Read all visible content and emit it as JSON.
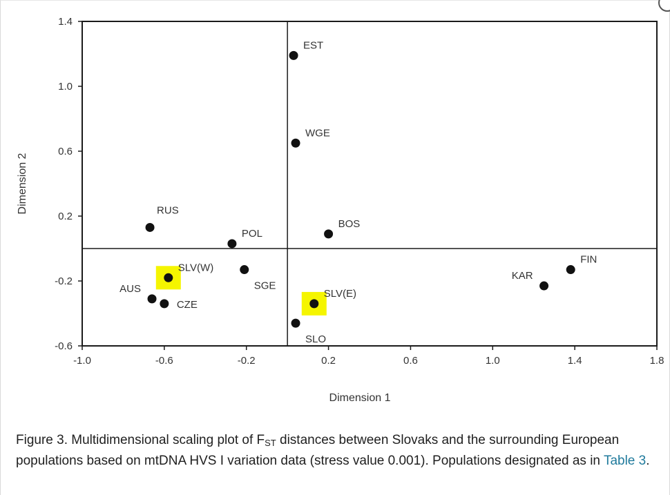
{
  "chart_data": {
    "type": "scatter",
    "xlabel": "Dimension 1",
    "ylabel": "Dimension 2",
    "xlim": [
      -1.0,
      1.8
    ],
    "ylim": [
      -0.6,
      1.4
    ],
    "xticks": [
      "-1.0",
      "-0.6",
      "-0.2",
      "0.2",
      "0.6",
      "1.0",
      "1.4",
      "1.8"
    ],
    "yticks": [
      "1.4",
      "1.0",
      "0.6",
      "0.2",
      "-0.2",
      "-0.6"
    ],
    "xtick_values": [
      -1.0,
      -0.6,
      -0.2,
      0.2,
      0.6,
      1.0,
      1.4,
      1.8
    ],
    "ytick_values": [
      1.4,
      1.0,
      0.6,
      0.2,
      -0.2,
      -0.6
    ],
    "reference_lines": {
      "x": 0.0,
      "y": 0.0
    },
    "highlight_color": "#f5f500",
    "marker_color": "#111111",
    "points": [
      {
        "label": "EST",
        "x": 0.03,
        "y": 1.19,
        "label_pos": "upper-right"
      },
      {
        "label": "WGE",
        "x": 0.04,
        "y": 0.65,
        "label_pos": "upper-right"
      },
      {
        "label": "RUS",
        "x": -0.67,
        "y": 0.13,
        "label_pos": "above"
      },
      {
        "label": "POL",
        "x": -0.27,
        "y": 0.03,
        "label_pos": "upper-right"
      },
      {
        "label": "BOS",
        "x": 0.2,
        "y": 0.09,
        "label_pos": "upper-right"
      },
      {
        "label": "SLV(W)",
        "x": -0.58,
        "y": -0.18,
        "label_pos": "upper-right",
        "highlight": true
      },
      {
        "label": "SGE",
        "x": -0.21,
        "y": -0.13,
        "label_pos": "lower-right"
      },
      {
        "label": "AUS",
        "x": -0.66,
        "y": -0.31,
        "label_pos": "upper-left"
      },
      {
        "label": "CZE",
        "x": -0.6,
        "y": -0.34,
        "label_pos": "right"
      },
      {
        "label": "SLV(E)",
        "x": 0.13,
        "y": -0.34,
        "label_pos": "upper-right",
        "highlight": true
      },
      {
        "label": "SLO",
        "x": 0.04,
        "y": -0.46,
        "label_pos": "lower-right"
      },
      {
        "label": "KAR",
        "x": 1.25,
        "y": -0.23,
        "label_pos": "upper-left"
      },
      {
        "label": "FIN",
        "x": 1.38,
        "y": -0.13,
        "label_pos": "upper-right"
      }
    ]
  },
  "caption": {
    "part1": "Figure 3. Multidimensional scaling plot of F",
    "sub": "ST",
    "part2": " distances between Slovaks and the surrounding European populations based on mtDNA HVS I variation data (stress value 0.001). Populations designated as in ",
    "link": "Table 3",
    "part3": "."
  }
}
